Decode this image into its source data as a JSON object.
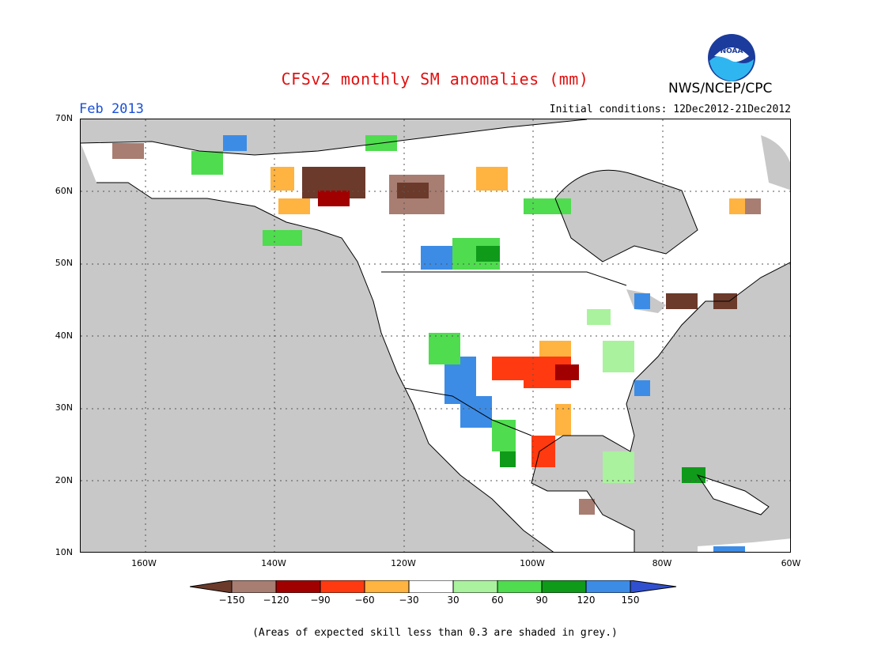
{
  "title": "CFSv2 monthly SM anomalies (mm)",
  "period": "Feb 2013",
  "initial_conditions": "Initial conditions: 12Dec2012-21Dec2012",
  "agency": "NWS/NCEP/CPC",
  "logo_text": "NOAA",
  "footnote": "(Areas of expected skill less than 0.3 are shaded in grey.)",
  "map": {
    "region": "North America",
    "lat_range": [
      10,
      70
    ],
    "lon_range": [
      -170,
      -60
    ],
    "lat_ticks": [
      "70N",
      "60N",
      "50N",
      "40N",
      "30N",
      "20N",
      "10N"
    ],
    "lon_ticks": [
      "160W",
      "140W",
      "120W",
      "100W",
      "80W",
      "60W"
    ],
    "low_skill_color": "#c8c8c8",
    "gridlines": "dotted"
  },
  "legend": {
    "labels": [
      "-150",
      "-120",
      "-90",
      "-60",
      "-30",
      "30",
      "60",
      "90",
      "120",
      "150"
    ],
    "colors": [
      "#6b3a2a",
      "#a87d72",
      "#a00000",
      "#ff3a10",
      "#ffb340",
      "#ffffff",
      "#aaf29e",
      "#4fdc4f",
      "#0f9a1a",
      "#3c8ce6",
      "#3050d0"
    ]
  }
}
